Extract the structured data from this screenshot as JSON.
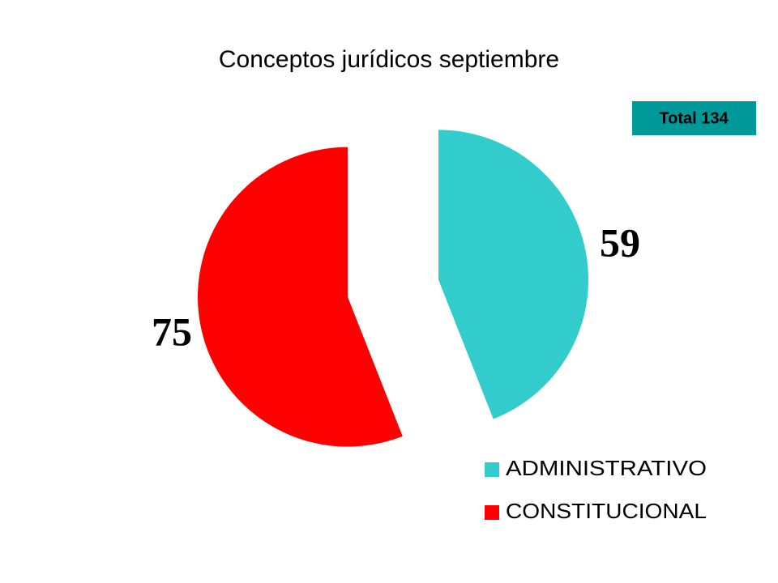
{
  "chart_data": {
    "type": "pie",
    "title": "Conceptos jurídicos septiembre",
    "annotation": "Total 134",
    "categories": [
      "ADMINISTRATIVO",
      "CONSTITUCIONAL"
    ],
    "values": [
      59,
      75
    ],
    "colors": [
      "#33CCCC",
      "#FF0000"
    ],
    "exploded": true,
    "legend": "bottom-right"
  }
}
